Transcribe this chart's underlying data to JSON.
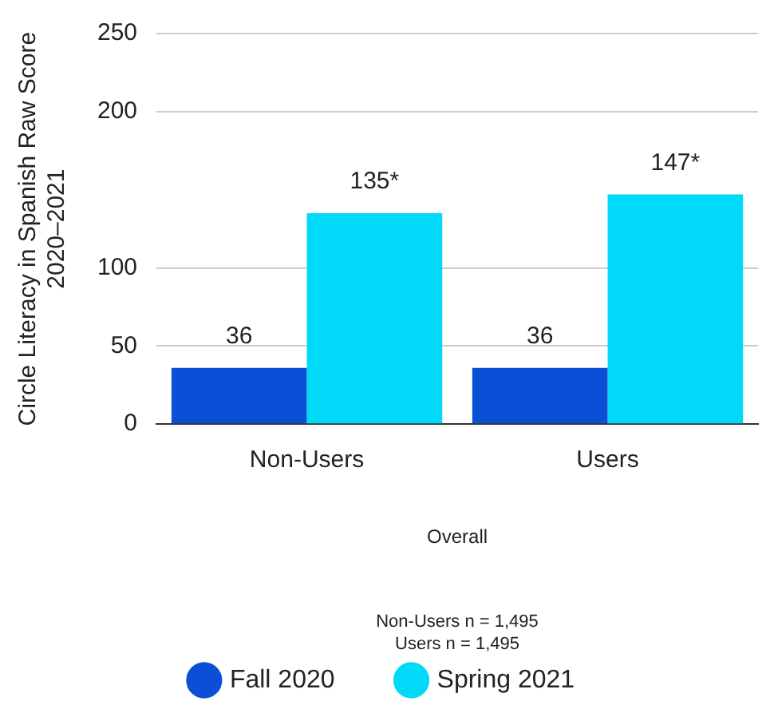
{
  "chart_data": {
    "type": "bar",
    "ylabel": "Circle Literacy in Spanish Raw Score\n2020–2021",
    "xlabel": "Overall",
    "categories": [
      "Non-Users",
      "Users"
    ],
    "series": [
      {
        "name": "Fall 2020",
        "color": "#0a4fd6",
        "values": [
          36,
          36
        ],
        "value_labels": [
          "36",
          "36"
        ]
      },
      {
        "name": "Spring 2021",
        "color": "#00d9f7",
        "values": [
          135,
          147
        ],
        "value_labels": [
          "135*",
          "147*"
        ]
      }
    ],
    "ylim": [
      0,
      250
    ],
    "yticks": [
      0,
      50,
      100,
      200,
      250
    ],
    "grid": "y",
    "legend": "bottom",
    "annotations": [
      "Non-Users n = 1,495",
      "Users n = 1,495"
    ]
  }
}
